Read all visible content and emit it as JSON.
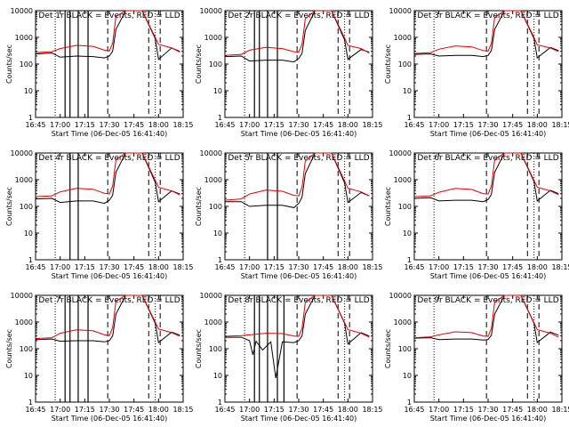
{
  "figure": {
    "panel_titles_note": "Nine panels, one per detector"
  },
  "chart_data": [
    {
      "type": "line",
      "title": "Det 1r BLACK = Events, RED = LLD",
      "xlabel": "Start Time (06-Dec-05 16:41:40)",
      "ylabel": "Counts/sec",
      "y_scale": "log",
      "ylim": [
        1,
        10000
      ],
      "xlim_minutes": [
        "16:45",
        "18:15"
      ],
      "x_tick_labels": [
        "16:45",
        "17:00",
        "17:15",
        "17:30",
        "17:45",
        "18:00",
        "18:15"
      ],
      "y_tick_labels": [
        "1",
        "10",
        "100",
        "1000",
        "10000"
      ],
      "series": [
        {
          "color": "#000000",
          "x": [
            "16:45",
            "16:55",
            "17:00",
            "17:10",
            "17:20",
            "17:27",
            "17:30",
            "17:32",
            "17:34",
            "17:40",
            "17:50",
            "17:58",
            "18:00",
            "18:08",
            "18:13"
          ],
          "y": [
            240,
            260,
            180,
            200,
            190,
            170,
            200,
            300,
            2000,
            10000,
            10000,
            900,
            150,
            400,
            300
          ]
        },
        {
          "color": "#e00000",
          "x": [
            "16:45",
            "16:55",
            "17:00",
            "17:10",
            "17:20",
            "17:27",
            "17:30",
            "17:32",
            "17:34",
            "17:40",
            "17:50",
            "17:58",
            "18:00",
            "18:08",
            "18:13"
          ],
          "y": [
            270,
            290,
            380,
            500,
            460,
            330,
            310,
            600,
            6000,
            10000,
            10000,
            1000,
            550,
            400,
            280
          ]
        }
      ],
      "vlines_dotted": [
        "16:57",
        "17:58"
      ],
      "vlines_solid": [
        "17:03",
        "17:06",
        "17:11",
        "17:17"
      ],
      "vlines_dashed": [
        "17:29",
        "17:54",
        "18:01"
      ]
    },
    {
      "type": "line",
      "title": "Det 2r BLACK = Events, RED = LLD",
      "xlabel": "Start Time (06-Dec-05 16:41:40)",
      "ylabel": "Counts/sec",
      "y_scale": "log",
      "ylim": [
        1,
        10000
      ],
      "xlim_minutes": [
        "16:45",
        "18:15"
      ],
      "x_tick_labels": [
        "16:45",
        "17:00",
        "17:15",
        "17:30",
        "17:45",
        "18:00",
        "18:15"
      ],
      "y_tick_labels": [
        "1",
        "10",
        "100",
        "1000",
        "10000"
      ],
      "series": [
        {
          "color": "#000000",
          "x": [
            "16:45",
            "16:55",
            "17:00",
            "17:10",
            "17:20",
            "17:27",
            "17:30",
            "17:32",
            "17:34",
            "17:40",
            "17:50",
            "17:58",
            "18:00",
            "18:08",
            "18:13"
          ],
          "y": [
            190,
            200,
            130,
            140,
            140,
            120,
            160,
            250,
            1800,
            10000,
            10000,
            800,
            150,
            350,
            280
          ]
        },
        {
          "color": "#e00000",
          "x": [
            "16:45",
            "16:55",
            "17:00",
            "17:10",
            "17:20",
            "17:27",
            "17:30",
            "17:32",
            "17:34",
            "17:40",
            "17:50",
            "17:58",
            "18:00",
            "18:08",
            "18:13"
          ],
          "y": [
            210,
            230,
            330,
            420,
            380,
            290,
            280,
            550,
            5000,
            10000,
            10000,
            950,
            500,
            380,
            260
          ]
        }
      ],
      "vlines_dotted": [
        "16:57",
        "17:58"
      ],
      "vlines_solid": [
        "17:03",
        "17:06",
        "17:11",
        "17:17"
      ],
      "vlines_dashed": [
        "17:29",
        "17:54",
        "18:01"
      ]
    },
    {
      "type": "line",
      "title": "Det 3r BLACK = Events, RED = LLD",
      "xlabel": "Start Time (06-Dec-05 16:41:40)",
      "ylabel": "Counts/sec",
      "y_scale": "log",
      "ylim": [
        1,
        10000
      ],
      "xlim_minutes": [
        "16:45",
        "18:15"
      ],
      "x_tick_labels": [
        "16:45",
        "17:00",
        "17:15",
        "17:30",
        "17:45",
        "18:00",
        "18:15"
      ],
      "y_tick_labels": [
        "1",
        "10",
        "100",
        "1000",
        "10000"
      ],
      "series": [
        {
          "color": "#000000",
          "x": [
            "16:45",
            "16:55",
            "17:00",
            "17:10",
            "17:20",
            "17:27",
            "17:30",
            "17:32",
            "17:34",
            "17:40",
            "17:50",
            "17:58",
            "18:00",
            "18:08",
            "18:13"
          ],
          "y": [
            230,
            240,
            200,
            210,
            210,
            190,
            210,
            320,
            2000,
            10000,
            10000,
            900,
            170,
            420,
            320
          ]
        },
        {
          "color": "#e00000",
          "x": [
            "16:45",
            "16:55",
            "17:00",
            "17:10",
            "17:20",
            "17:27",
            "17:30",
            "17:32",
            "17:34",
            "17:40",
            "17:50",
            "17:58",
            "18:00",
            "18:08",
            "18:13"
          ],
          "y": [
            250,
            270,
            360,
            480,
            440,
            320,
            300,
            600,
            5500,
            10000,
            10000,
            1000,
            520,
            400,
            290
          ]
        }
      ],
      "vlines_dotted": [
        "16:57",
        "17:58"
      ],
      "vlines_solid": [],
      "vlines_dashed": [
        "17:29",
        "17:54",
        "18:01"
      ]
    },
    {
      "type": "line",
      "title": "Det 4r BLACK = Events, RED = LLD",
      "xlabel": "Start Time (06-Dec-05 16:41:40)",
      "ylabel": "Counts/sec",
      "y_scale": "log",
      "ylim": [
        1,
        10000
      ],
      "xlim_minutes": [
        "16:45",
        "18:15"
      ],
      "x_tick_labels": [
        "16:45",
        "17:00",
        "17:15",
        "17:30",
        "17:45",
        "18:00",
        "18:15"
      ],
      "y_tick_labels": [
        "1",
        "10",
        "100",
        "1000",
        "10000"
      ],
      "series": [
        {
          "color": "#000000",
          "x": [
            "16:45",
            "16:55",
            "17:00",
            "17:10",
            "17:20",
            "17:27",
            "17:30",
            "17:32",
            "17:34",
            "17:40",
            "17:50",
            "17:58",
            "18:00",
            "18:08",
            "18:13"
          ],
          "y": [
            190,
            200,
            140,
            160,
            160,
            130,
            170,
            260,
            1900,
            10000,
            10000,
            800,
            150,
            380,
            290
          ]
        },
        {
          "color": "#e00000",
          "x": [
            "16:45",
            "16:55",
            "17:00",
            "17:10",
            "17:20",
            "17:27",
            "17:30",
            "17:32",
            "17:34",
            "17:40",
            "17:50",
            "17:58",
            "18:00",
            "18:08",
            "18:13"
          ],
          "y": [
            230,
            250,
            350,
            480,
            440,
            310,
            290,
            580,
            5500,
            10000,
            10000,
            950,
            520,
            380,
            270
          ]
        }
      ],
      "vlines_dotted": [
        "16:57",
        "17:58"
      ],
      "vlines_solid": [
        "17:06",
        "17:11"
      ],
      "vlines_dashed": [
        "17:29",
        "17:54",
        "18:01"
      ]
    },
    {
      "type": "line",
      "title": "Det 5r BLACK = Events, RED = LLD",
      "xlabel": "Start Time (06-Dec-05 16:41:40)",
      "ylabel": "Counts/sec",
      "y_scale": "log",
      "ylim": [
        1,
        10000
      ],
      "xlim_minutes": [
        "16:45",
        "18:15"
      ],
      "x_tick_labels": [
        "16:45",
        "17:00",
        "17:15",
        "17:30",
        "17:45",
        "18:00",
        "18:15"
      ],
      "y_tick_labels": [
        "1",
        "10",
        "100",
        "1000",
        "10000"
      ],
      "series": [
        {
          "color": "#000000",
          "x": [
            "16:45",
            "16:55",
            "17:00",
            "17:10",
            "17:20",
            "17:27",
            "17:30",
            "17:32",
            "17:34",
            "17:40",
            "17:50",
            "17:58",
            "18:00",
            "18:08",
            "18:13"
          ],
          "y": [
            150,
            150,
            100,
            110,
            110,
            90,
            130,
            220,
            1700,
            10000,
            10000,
            750,
            140,
            330,
            250
          ]
        },
        {
          "color": "#e00000",
          "x": [
            "16:45",
            "16:55",
            "17:00",
            "17:10",
            "17:20",
            "17:27",
            "17:30",
            "17:32",
            "17:34",
            "17:40",
            "17:50",
            "17:58",
            "18:00",
            "18:08",
            "18:13"
          ],
          "y": [
            170,
            190,
            290,
            410,
            370,
            260,
            250,
            520,
            5000,
            10000,
            10000,
            900,
            480,
            350,
            250
          ]
        }
      ],
      "vlines_dotted": [
        "16:57",
        "17:58"
      ],
      "vlines_solid": [
        "17:11",
        "17:17"
      ],
      "vlines_dashed": [
        "17:29",
        "17:54",
        "18:01"
      ]
    },
    {
      "type": "line",
      "title": "Det 6r BLACK = Events, RED = LLD",
      "xlabel": "Start Time (06-Dec-05 16:41:40)",
      "ylabel": "Counts/sec",
      "y_scale": "log",
      "ylim": [
        1,
        10000
      ],
      "xlim_minutes": [
        "16:45",
        "18:15"
      ],
      "x_tick_labels": [
        "16:45",
        "17:00",
        "17:15",
        "17:30",
        "17:45",
        "18:00",
        "18:15"
      ],
      "y_tick_labels": [
        "1",
        "10",
        "100",
        "1000",
        "10000"
      ],
      "series": [
        {
          "color": "#000000",
          "x": [
            "16:45",
            "16:55",
            "17:00",
            "17:10",
            "17:20",
            "17:27",
            "17:30",
            "17:32",
            "17:34",
            "17:40",
            "17:50",
            "17:58",
            "18:00",
            "18:08",
            "18:13"
          ],
          "y": [
            200,
            210,
            160,
            170,
            170,
            150,
            180,
            280,
            1900,
            10000,
            10000,
            850,
            160,
            400,
            300
          ]
        },
        {
          "color": "#e00000",
          "x": [
            "16:45",
            "16:55",
            "17:00",
            "17:10",
            "17:20",
            "17:27",
            "17:30",
            "17:32",
            "17:34",
            "17:40",
            "17:50",
            "17:58",
            "18:00",
            "18:08",
            "18:13"
          ],
          "y": [
            230,
            250,
            340,
            470,
            430,
            300,
            290,
            570,
            5500,
            10000,
            10000,
            950,
            520,
            380,
            270
          ]
        }
      ],
      "vlines_dotted": [
        "16:57",
        "17:58"
      ],
      "vlines_solid": [],
      "vlines_dashed": [
        "17:29",
        "17:54",
        "18:01"
      ]
    },
    {
      "type": "line",
      "title": "Det 7r BLACK = Events, RED = LLD",
      "xlabel": "Start Time (06-Dec-05 16:41:40)",
      "ylabel": "Counts/sec",
      "y_scale": "log",
      "ylim": [
        1,
        10000
      ],
      "xlim_minutes": [
        "16:45",
        "18:15"
      ],
      "x_tick_labels": [
        "16:45",
        "17:00",
        "17:15",
        "17:30",
        "17:45",
        "18:00",
        "18:15"
      ],
      "y_tick_labels": [
        "1",
        "10",
        "100",
        "1000",
        "10000"
      ],
      "series": [
        {
          "color": "#000000",
          "x": [
            "16:45",
            "16:55",
            "17:00",
            "17:10",
            "17:20",
            "17:27",
            "17:30",
            "17:32",
            "17:34",
            "17:40",
            "17:50",
            "17:58",
            "18:00",
            "18:08",
            "18:13"
          ],
          "y": [
            220,
            230,
            190,
            200,
            200,
            180,
            200,
            300,
            2000,
            10000,
            10000,
            900,
            170,
            420,
            320
          ]
        },
        {
          "color": "#e00000",
          "x": [
            "16:45",
            "16:55",
            "17:00",
            "17:10",
            "17:20",
            "17:27",
            "17:30",
            "17:32",
            "17:34",
            "17:40",
            "17:50",
            "17:58",
            "18:00",
            "18:08",
            "18:13"
          ],
          "y": [
            240,
            260,
            380,
            510,
            470,
            330,
            310,
            620,
            6000,
            10000,
            10000,
            1000,
            550,
            400,
            290
          ]
        }
      ],
      "vlines_dotted": [
        "16:57",
        "17:58"
      ],
      "vlines_solid": [
        "17:03",
        "17:06",
        "17:11",
        "17:17"
      ],
      "vlines_dashed": [
        "17:29",
        "17:54",
        "18:01"
      ]
    },
    {
      "type": "line",
      "title": "Det 8r BLACK = Events, RED = LLD",
      "xlabel": "Start Time (06-Dec-05 16:41:40)",
      "ylabel": "Counts/sec",
      "y_scale": "log",
      "ylim": [
        1,
        10000
      ],
      "xlim_minutes": [
        "16:45",
        "18:15"
      ],
      "x_tick_labels": [
        "16:45",
        "17:00",
        "17:15",
        "17:30",
        "17:45",
        "18:00",
        "18:15"
      ],
      "y_tick_labels": [
        "1",
        "10",
        "100",
        "1000",
        "10000"
      ],
      "series": [
        {
          "color": "#000000",
          "x": [
            "16:45",
            "16:55",
            "17:00",
            "17:02",
            "17:04",
            "17:08",
            "17:13",
            "17:16",
            "17:20",
            "17:27",
            "17:30",
            "17:32",
            "17:34",
            "17:40",
            "17:50",
            "17:58",
            "18:00",
            "18:08",
            "18:13"
          ],
          "y": [
            270,
            270,
            200,
            60,
            190,
            90,
            180,
            8,
            180,
            170,
            200,
            300,
            2000,
            10000,
            10000,
            900,
            150,
            400,
            300
          ]
        },
        {
          "color": "#e00000",
          "x": [
            "16:45",
            "16:55",
            "17:00",
            "17:10",
            "17:20",
            "17:27",
            "17:30",
            "17:32",
            "17:34",
            "17:40",
            "17:50",
            "17:58",
            "18:00",
            "18:08",
            "18:13"
          ],
          "y": [
            290,
            310,
            330,
            380,
            370,
            300,
            290,
            580,
            5500,
            10000,
            10000,
            950,
            520,
            380,
            270
          ]
        }
      ],
      "vlines_dotted": [
        "16:57",
        "17:58"
      ],
      "vlines_solid": [
        "17:03",
        "17:06",
        "17:11",
        "17:17",
        "17:21"
      ],
      "vlines_dashed": [
        "17:29",
        "17:54",
        "18:01"
      ]
    },
    {
      "type": "line",
      "title": "Det 9r BLACK = Events, RED = LLD",
      "xlabel": "Start Time (06-Dec-05 16:41:40)",
      "ylabel": "Counts/sec",
      "y_scale": "log",
      "ylim": [
        1,
        10000
      ],
      "xlim_minutes": [
        "16:45",
        "18:15"
      ],
      "x_tick_labels": [
        "16:45",
        "17:00",
        "17:15",
        "17:30",
        "17:45",
        "18:00",
        "18:15"
      ],
      "y_tick_labels": [
        "1",
        "10",
        "100",
        "1000",
        "10000"
      ],
      "series": [
        {
          "color": "#000000",
          "x": [
            "16:45",
            "16:55",
            "17:00",
            "17:10",
            "17:20",
            "17:27",
            "17:30",
            "17:32",
            "17:34",
            "17:40",
            "17:50",
            "17:58",
            "18:00",
            "18:08",
            "18:13"
          ],
          "y": [
            250,
            260,
            220,
            230,
            230,
            210,
            220,
            320,
            2000,
            10000,
            10000,
            900,
            170,
            420,
            320
          ]
        },
        {
          "color": "#e00000",
          "x": [
            "16:45",
            "16:55",
            "17:00",
            "17:10",
            "17:20",
            "17:27",
            "17:30",
            "17:32",
            "17:34",
            "17:40",
            "17:50",
            "17:58",
            "18:00",
            "18:08",
            "18:13"
          ],
          "y": [
            260,
            280,
            330,
            430,
            400,
            300,
            290,
            580,
            5500,
            10000,
            10000,
            950,
            520,
            380,
            270
          ]
        }
      ],
      "vlines_dotted": [
        "16:57",
        "17:58"
      ],
      "vlines_solid": [],
      "vlines_dashed": [
        "17:29",
        "17:54",
        "18:01"
      ]
    }
  ]
}
